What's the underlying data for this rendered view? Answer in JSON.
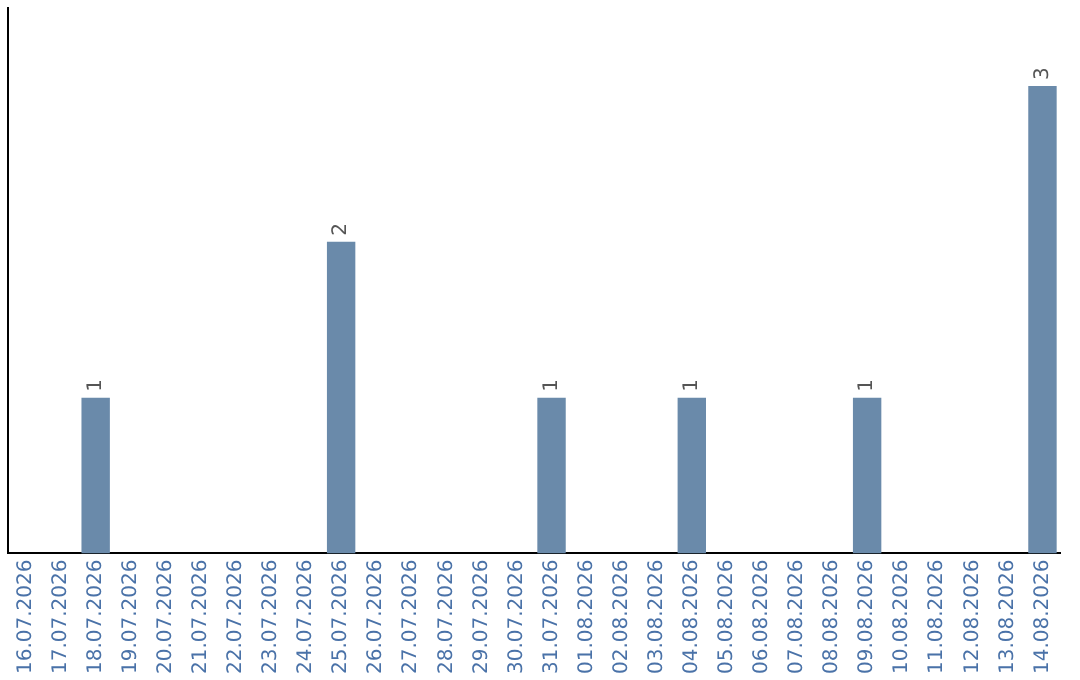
{
  "chart_data": {
    "type": "bar",
    "categories": [
      "16.07.2026",
      "17.07.2026",
      "18.07.2026",
      "19.07.2026",
      "20.07.2026",
      "21.07.2026",
      "22.07.2026",
      "23.07.2026",
      "24.07.2026",
      "25.07.2026",
      "26.07.2026",
      "27.07.2026",
      "28.07.2026",
      "29.07.2026",
      "30.07.2026",
      "31.07.2026",
      "01.08.2026",
      "02.08.2026",
      "03.08.2026",
      "04.08.2026",
      "05.08.2026",
      "06.08.2026",
      "07.08.2026",
      "08.08.2026",
      "09.08.2026",
      "10.08.2026",
      "11.08.2026",
      "12.08.2026",
      "13.08.2026",
      "14.08.2026"
    ],
    "values": [
      0,
      0,
      1,
      0,
      0,
      0,
      0,
      0,
      0,
      2,
      0,
      0,
      0,
      0,
      0,
      1,
      0,
      0,
      0,
      1,
      0,
      0,
      0,
      0,
      1,
      0,
      0,
      0,
      0,
      3
    ],
    "value_labels": [
      null,
      null,
      "1",
      null,
      null,
      null,
      null,
      null,
      null,
      "2",
      null,
      null,
      null,
      null,
      null,
      "1",
      null,
      null,
      null,
      "1",
      null,
      null,
      null,
      null,
      "1",
      null,
      null,
      null,
      null,
      "3"
    ],
    "color": "#6a8aaa",
    "grid": false,
    "legend": false,
    "tick_labels": "x"
  }
}
